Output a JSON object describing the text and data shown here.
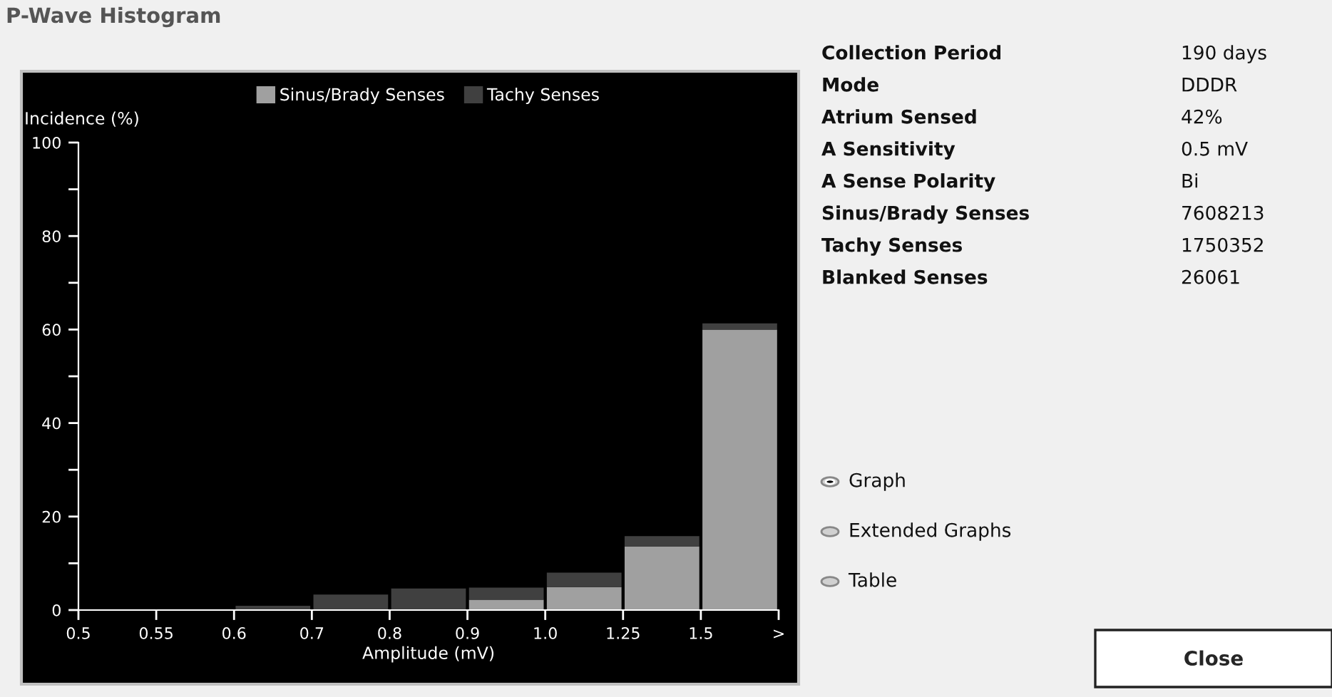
{
  "chart_data": [
    {
      "type": "bar",
      "title": "P-Wave Histogram",
      "xlabel": "Amplitude (mV)",
      "ylabel": "Incidence (%)",
      "stacked": true,
      "legend": "top",
      "categories": [
        "0.5",
        "0.55",
        "0.6",
        "0.7",
        "0.8",
        "0.9",
        "1.0",
        "1.25",
        "1.5"
      ],
      "annotations": [
        ">"
      ],
      "series": [
        {
          "name": "Sinus/Brady Senses",
          "color": "#a0a0a0",
          "values": [
            0,
            0,
            0,
            0,
            0,
            2.2,
            4.9,
            13.6,
            60.0
          ]
        },
        {
          "name": "Tachy Senses",
          "color": "#404040",
          "values": [
            0,
            0,
            0.9,
            3.3,
            4.6,
            2.6,
            3.1,
            2.2,
            1.3
          ]
        }
      ],
      "ylim": [
        0,
        100
      ],
      "yticks": [
        0,
        {
          "value": 10,
          "label": null
        },
        20,
        {
          "value": 30,
          "label": null
        },
        40,
        {
          "value": 50,
          "label": null
        },
        60,
        {
          "value": 70,
          "label": null
        },
        80,
        {
          "value": 90,
          "label": null
        },
        100
      ],
      "grid": false
    },
    {
      "type": "other",
      "annotations": [
        "Collection Period",
        "190 days",
        "Mode",
        "DDDR",
        "Atrium Sensed",
        "42%",
        "A Sensitivity",
        "0.5 mV",
        "A Sense Polarity",
        "Bi",
        "Sinus/Brady Senses",
        "7608213",
        "Tachy Senses",
        "1750352",
        "Blanked Senses",
        "26061",
        "Graph",
        "Extended Graphs",
        "Table",
        "Close"
      ]
    }
  ]
}
